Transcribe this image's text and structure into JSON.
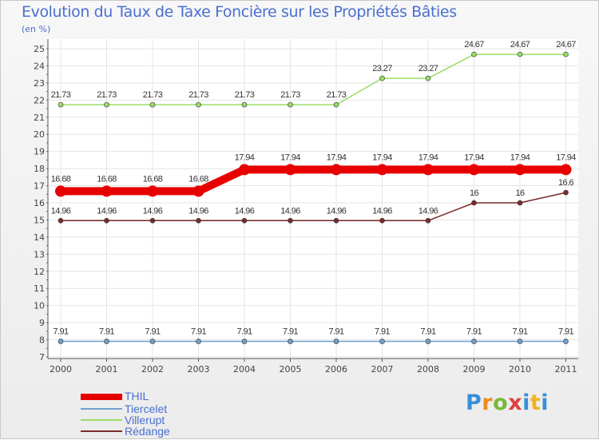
{
  "title": "Evolution du Taux de Taxe Foncière sur les Propriétés Bâties",
  "unit_label": "(en %)",
  "chart_data": {
    "type": "line",
    "title": "Evolution du Taux de Taxe Foncière sur les Propriétés Bâties",
    "ylabel": "(en %)",
    "xlabel": "",
    "ylim": [
      7,
      25
    ],
    "yticks": [
      "7",
      "8",
      "9",
      "10",
      "11",
      "12",
      "13",
      "14",
      "15",
      "16",
      "17",
      "18",
      "19",
      "20",
      "21",
      "22",
      "23",
      "24",
      "25"
    ],
    "x": [
      "2000",
      "2001",
      "2002",
      "2003",
      "2004",
      "2005",
      "2006",
      "2007",
      "2008",
      "2009",
      "2010",
      "2011"
    ],
    "grid": true,
    "series": [
      {
        "name": "THIL",
        "color": "#e60000",
        "values": [
          16.68,
          16.68,
          16.68,
          16.68,
          17.94,
          17.94,
          17.94,
          17.94,
          17.94,
          17.94,
          17.94,
          17.94
        ],
        "labels": [
          "16.68",
          "16.68",
          "16.68",
          "16.68",
          "17.94",
          "17.94",
          "17.94",
          "17.94",
          "17.94",
          "17.94",
          "17.94",
          "17.94"
        ]
      },
      {
        "name": "Tiercelet",
        "color": "#6fa0cc",
        "values": [
          7.91,
          7.91,
          7.91,
          7.91,
          7.91,
          7.91,
          7.91,
          7.91,
          7.91,
          7.91,
          7.91,
          7.91
        ],
        "labels": [
          "7.91",
          "7.91",
          "7.91",
          "7.91",
          "7.91",
          "7.91",
          "7.91",
          "7.91",
          "7.91",
          "7.91",
          "7.91",
          "7.91"
        ]
      },
      {
        "name": "Villerupt",
        "color": "#99dd66",
        "values": [
          21.73,
          21.73,
          21.73,
          21.73,
          21.73,
          21.73,
          21.73,
          23.27,
          23.27,
          24.67,
          24.67,
          24.67
        ],
        "labels": [
          "21.73",
          "21.73",
          "21.73",
          "21.73",
          "21.73",
          "21.73",
          "21.73",
          "23.27",
          "23.27",
          "24.67",
          "24.67",
          "24.67"
        ]
      },
      {
        "name": "Rédange",
        "color": "#7a2a2a",
        "values": [
          14.96,
          14.96,
          14.96,
          14.96,
          14.96,
          14.96,
          14.96,
          14.96,
          14.96,
          16,
          16,
          16.6
        ],
        "labels": [
          "14.96",
          "14.96",
          "14.96",
          "14.96",
          "14.96",
          "14.96",
          "14.96",
          "14.96",
          "14.96",
          "16",
          "16",
          "16.6"
        ]
      }
    ]
  },
  "legend": [
    {
      "name": "THIL",
      "color": "#e60000"
    },
    {
      "name": "Tiercelet",
      "color": "#6fa0cc"
    },
    {
      "name": "Villerupt",
      "color": "#99dd66"
    },
    {
      "name": "Rédange",
      "color": "#7a2a2a"
    }
  ],
  "logo": {
    "text": "Proxiti",
    "letter_colors": [
      "#3a8fd6",
      "#f08a1c",
      "#7ab83a",
      "#e04040",
      "#3a8fd6",
      "#f2b21c",
      "#3a8fd6"
    ]
  }
}
